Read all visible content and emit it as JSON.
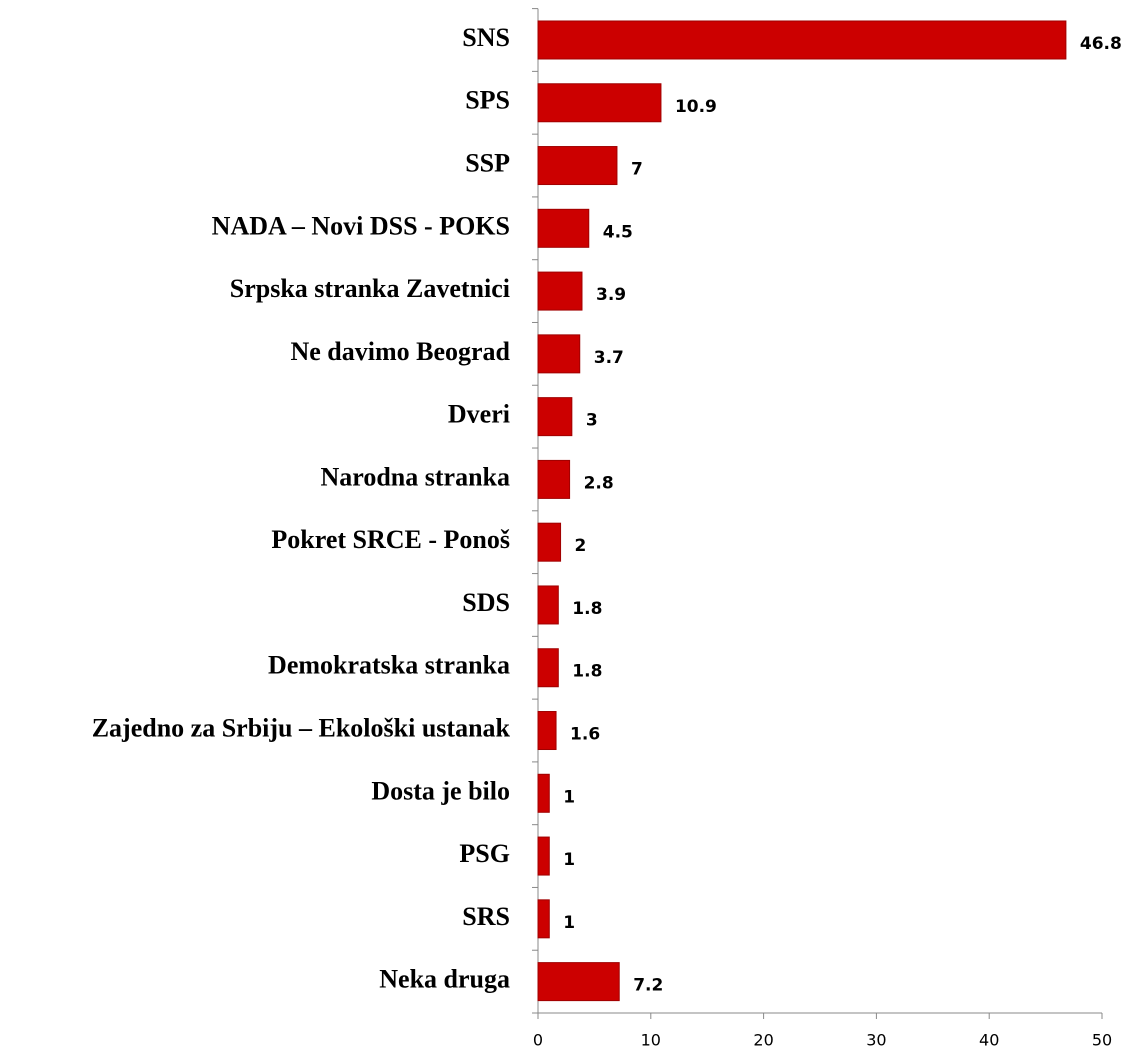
{
  "chart_data": {
    "type": "bar",
    "orientation": "horizontal",
    "categories": [
      "SNS",
      "SPS",
      "SSP",
      "NADA – Novi DSS - POKS",
      "Srpska stranka Zavetnici",
      "Ne davimo Beograd",
      "Dveri",
      "Narodna stranka",
      "Pokret SRCE - Ponoš",
      "SDS",
      "Demokratska stranka",
      "Zajedno za Srbiju – Ekološki ustanak",
      "Dosta je bilo",
      "PSG",
      "SRS",
      "Neka druga"
    ],
    "values": [
      46.8,
      10.9,
      7,
      4.5,
      3.9,
      3.7,
      3,
      2.8,
      2,
      1.8,
      1.8,
      1.6,
      1,
      1,
      1,
      7.2
    ],
    "color": "#cc0000",
    "xlim": [
      0,
      50
    ],
    "xticks": [
      0,
      10,
      20,
      30,
      40,
      50
    ]
  }
}
